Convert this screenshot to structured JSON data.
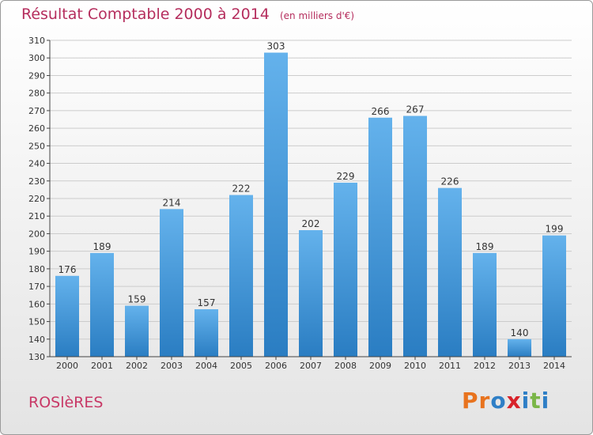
{
  "header": {
    "title": "Résultat Comptable 2000 à 2014",
    "unit": "(en milliers d'€)"
  },
  "footer": {
    "commune": "ROSlèRES",
    "logo_text": "Proxiti",
    "logo_colors": [
      "#e8731e",
      "#e8731e",
      "#2f7fc6",
      "#d8222a",
      "#2f7fc6",
      "#7ab648",
      "#2f7fc6"
    ]
  },
  "colors": {
    "bar_light": "#64b2ec",
    "bar_dark": "#2a7dc2",
    "axis": "#444444",
    "grid": "#cccccc",
    "title": "#b52d5d"
  },
  "chart_data": {
    "type": "bar",
    "title": "Résultat Comptable 2000 à 2014",
    "subtitle": "(en milliers d'€)",
    "xlabel": "",
    "ylabel": "",
    "categories": [
      "2000",
      "2001",
      "2002",
      "2003",
      "2004",
      "2005",
      "2006",
      "2007",
      "2008",
      "2009",
      "2010",
      "2011",
      "2012",
      "2013",
      "2014"
    ],
    "values": [
      176,
      189,
      159,
      214,
      157,
      222,
      303,
      202,
      229,
      266,
      267,
      226,
      189,
      140,
      199
    ],
    "ylim": [
      130,
      310
    ],
    "yticks": [
      130,
      140,
      150,
      160,
      170,
      180,
      190,
      200,
      210,
      220,
      230,
      240,
      250,
      260,
      270,
      280,
      290,
      300,
      310
    ],
    "grid": true,
    "legend": "none"
  }
}
